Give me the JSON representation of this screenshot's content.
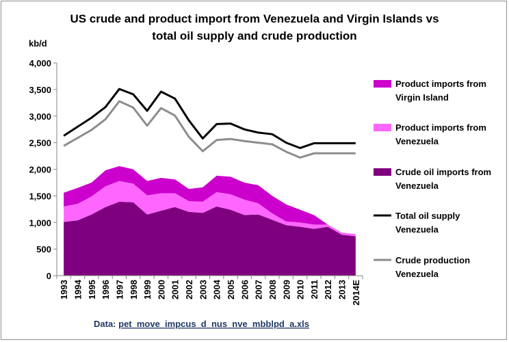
{
  "chart_data": {
    "type": "area",
    "title_lines": [
      "US crude and product import from Venezuela and Virgin Islands vs",
      "total oil supply and crude production"
    ],
    "ylabel": "kb/d",
    "ylim": [
      0,
      4000
    ],
    "yticks": [
      "0",
      "500",
      "1,000",
      "1,500",
      "2,000",
      "2,500",
      "3,000",
      "3,500",
      "4,000"
    ],
    "ytick_values": [
      0,
      500,
      1000,
      1500,
      2000,
      2500,
      3000,
      3500,
      4000
    ],
    "categories": [
      "1993",
      "1994",
      "1995",
      "1996",
      "1997",
      "1998",
      "1999",
      "2000",
      "2001",
      "2002",
      "2003",
      "2004",
      "2005",
      "2006",
      "2007",
      "2008",
      "2009",
      "2010",
      "2011",
      "2012",
      "2013",
      "2014E"
    ],
    "stacked_areas": [
      {
        "name": "Crude oil imports from Venezuela",
        "legend_lines": [
          "Crude oil imports from",
          "Venezuela"
        ],
        "color": "#7f007f",
        "values": [
          1010,
          1040,
          1150,
          1290,
          1390,
          1380,
          1150,
          1220,
          1290,
          1200,
          1180,
          1300,
          1240,
          1140,
          1150,
          1050,
          950,
          920,
          880,
          920,
          770,
          740
        ]
      },
      {
        "name": "Product imports from Venezuela",
        "legend_lines": [
          "Product imports from",
          "Venezuela"
        ],
        "color": "#ff66ff",
        "values": [
          290,
          310,
          340,
          390,
          390,
          350,
          360,
          330,
          260,
          200,
          210,
          270,
          290,
          290,
          210,
          120,
          70,
          80,
          80,
          40,
          40,
          40
        ]
      },
      {
        "name": "Product imports from Virgin Island",
        "legend_lines": [
          "Product imports from",
          "Virgin Island"
        ],
        "color": "#cc00cc",
        "values": [
          260,
          300,
          260,
          300,
          280,
          270,
          270,
          290,
          260,
          230,
          270,
          310,
          330,
          320,
          340,
          330,
          320,
          240,
          180,
          0,
          0,
          0
        ]
      }
    ],
    "lines": [
      {
        "name": "Total oil supply Venezuela",
        "legend_lines": [
          "Total oil supply",
          "Venezuela"
        ],
        "color": "#000000",
        "values": [
          2630,
          2800,
          2970,
          3170,
          3510,
          3410,
          3100,
          3460,
          3330,
          2920,
          2580,
          2850,
          2860,
          2750,
          2690,
          2660,
          2500,
          2400,
          2490,
          2490,
          2490,
          2490
        ]
      },
      {
        "name": "Crude production Venezuela",
        "legend_lines": [
          "Crude production",
          "Venezuela"
        ],
        "color": "#8c8c8c",
        "values": [
          2440,
          2590,
          2740,
          2940,
          3280,
          3160,
          2820,
          3150,
          3010,
          2610,
          2340,
          2550,
          2570,
          2530,
          2500,
          2470,
          2330,
          2220,
          2300,
          2300,
          2300,
          2300
        ]
      }
    ],
    "legend_position": "right",
    "grid": false
  },
  "source": {
    "prefix": "Data: ",
    "link": "pet_move_impcus_d_nus_nve_mbblpd_a.xls"
  }
}
